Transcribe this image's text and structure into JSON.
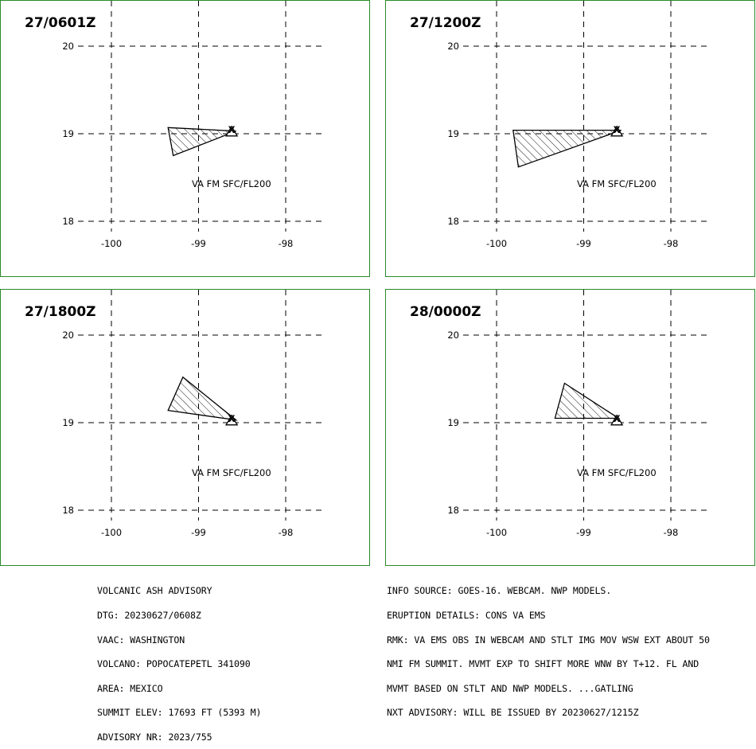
{
  "panels": [
    {
      "time": "27/0601Z",
      "label": "VA FM SFC/FL200",
      "polygon": [
        [
          -99.35,
          19.07
        ],
        [
          -98.57,
          19.03
        ],
        [
          -99.29,
          18.75
        ]
      ],
      "summit": [
        -98.62,
        19.02
      ]
    },
    {
      "time": "27/1200Z",
      "label": "VA FM SFC/FL200",
      "polygon": [
        [
          -99.81,
          19.04
        ],
        [
          -98.57,
          19.04
        ],
        [
          -99.75,
          18.62
        ]
      ],
      "summit": [
        -98.62,
        19.02
      ]
    },
    {
      "time": "27/1800Z",
      "label": "VA FM SFC/FL200",
      "polygon": [
        [
          -99.18,
          19.52
        ],
        [
          -98.57,
          19.03
        ],
        [
          -99.35,
          19.14
        ]
      ],
      "summit": [
        -98.62,
        19.02
      ]
    },
    {
      "time": "28/0000Z",
      "label": "VA FM SFC/FL200",
      "polygon": [
        [
          -99.22,
          19.45
        ],
        [
          -98.6,
          19.05
        ],
        [
          -99.33,
          19.05
        ]
      ],
      "summit": [
        -98.62,
        19.02
      ]
    }
  ],
  "map": {
    "lon_ticks": [
      -100,
      -99,
      -98
    ],
    "lat_ticks": [
      20,
      19,
      18
    ],
    "lon_labels": [
      "-100",
      "-99",
      "-98"
    ],
    "lat_labels": [
      "20",
      "19",
      "18"
    ]
  },
  "summit_marker": "X",
  "advisory_left": [
    "VOLCANIC ASH ADVISORY",
    "DTG: 20230627/0608Z",
    "VAAC: WASHINGTON",
    "VOLCANO: POPOCATEPETL 341090",
    "AREA: MEXICO",
    "SUMMIT ELEV: 17693 FT (5393 M)",
    "ADVISORY NR: 2023/755"
  ],
  "advisory_right": [
    "INFO SOURCE: GOES-16. WEBCAM. NWP MODELS.",
    "ERUPTION DETAILS: CONS VA EMS",
    "RMK: VA EMS OBS IN WEBCAM AND STLT IMG MOV WSW EXT ABOUT 50",
    "NMI FM SUMMIT. MVMT EXP TO SHIFT MORE WNW BY T+12. FL AND",
    "MVMT BASED ON STLT AND NWP MODELS. ...GATLING",
    "NXT ADVISORY: WILL BE ISSUED BY 20230627/1215Z"
  ],
  "colors": {
    "panel_border": "#2a8a2a",
    "grid": "#000000",
    "ash_outline": "#000000"
  }
}
